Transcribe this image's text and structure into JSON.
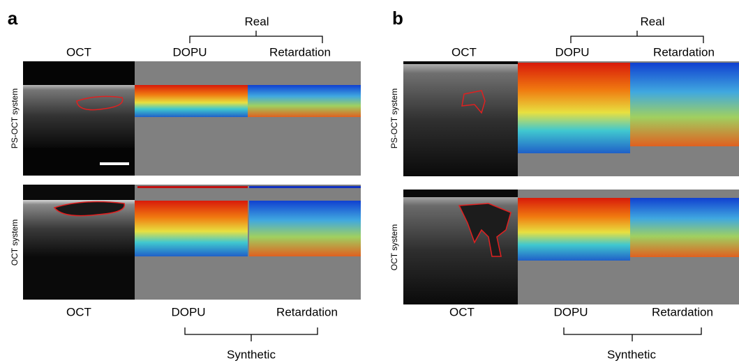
{
  "panels": [
    {
      "label": "a",
      "real_group": "Real",
      "top_headers": [
        "OCT",
        "DOPU",
        "Retardation"
      ],
      "row_labels": [
        "PS-OCT system",
        "OCT system"
      ],
      "bottom_headers": [
        "OCT",
        "DOPU",
        "Retardation"
      ],
      "synthetic_group": "Synthetic"
    },
    {
      "label": "b",
      "real_group": "Real",
      "top_headers": [
        "OCT",
        "DOPU",
        "Retardation"
      ],
      "row_labels": [
        "PS-OCT system",
        "OCT system"
      ],
      "bottom_headers": [
        "OCT",
        "DOPU",
        "Retardation"
      ],
      "synthetic_group": "Synthetic"
    }
  ]
}
